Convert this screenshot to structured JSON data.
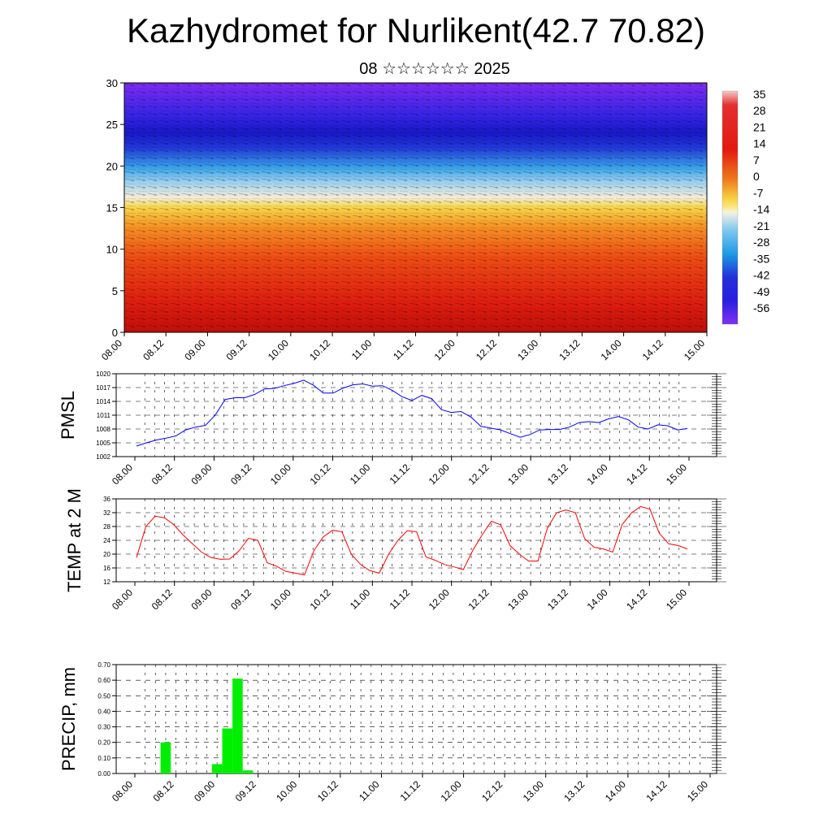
{
  "header": {
    "title": "Kazhydromet for Nurlikent(42.7 70.82)",
    "subtitle": "08 ☆☆☆☆☆☆ 2025"
  },
  "x_ticks": [
    "08.00",
    "08.12",
    "09.00",
    "09.12",
    "10.00",
    "10.12",
    "11.00",
    "11.12",
    "12.00",
    "12.12",
    "13.00",
    "13.12",
    "14.00",
    "14.12",
    "15.00"
  ],
  "chart_data": [
    {
      "type": "heatmap",
      "title": "",
      "ylim": [
        0,
        30
      ],
      "y_ticks": [
        "0",
        "5",
        "10",
        "15",
        "20",
        "25",
        "30"
      ],
      "colorbar_labels": [
        "35",
        "28",
        "21",
        "14",
        "7",
        "0",
        "-7",
        "-14",
        "-21",
        "-28",
        "-35",
        "-42",
        "-49",
        "-56"
      ],
      "colors": {
        "warm": "#d81a0c",
        "mid": "#f5c93a",
        "cool": "#8ec8f0",
        "cold": "#1a1ae0",
        "top": "#7b2cf0"
      },
      "description_layers": "temperature shading with wind vectors"
    },
    {
      "type": "line",
      "ylabel": "PMSL",
      "ylim": [
        1002,
        1020
      ],
      "y_ticks": [
        "1002",
        "1005",
        "1008",
        "1011",
        "1014",
        "1017",
        "1020"
      ],
      "color": "#0000ff",
      "values": [
        1004.3,
        1005.0,
        1005.6,
        1006.0,
        1006.5,
        1007.8,
        1008.4,
        1008.8,
        1011.0,
        1014.4,
        1014.8,
        1014.8,
        1015.5,
        1016.7,
        1016.8,
        1017.4,
        1017.9,
        1018.6,
        1017.5,
        1015.8,
        1015.8,
        1016.9,
        1017.6,
        1017.8,
        1017.3,
        1017.4,
        1016.4,
        1015.0,
        1014.2,
        1015.3,
        1014.6,
        1012.2,
        1011.6,
        1011.8,
        1010.6,
        1008.6,
        1008.2,
        1007.8,
        1007.0,
        1006.2,
        1006.8,
        1007.8,
        1007.9,
        1007.9,
        1008.4,
        1009.4,
        1009.6,
        1009.4,
        1010.2,
        1010.7,
        1010.0,
        1008.4,
        1008.0,
        1008.9,
        1008.7,
        1007.8,
        1008.1
      ]
    },
    {
      "type": "line",
      "ylabel": "TEMP at 2 M",
      "ylim": [
        12,
        36
      ],
      "y_ticks": [
        "12",
        "16",
        "20",
        "24",
        "28",
        "32",
        "36"
      ],
      "color": "#ff0000",
      "values": [
        19,
        28,
        31,
        30.5,
        28.5,
        25.5,
        23,
        20.5,
        19,
        18.5,
        18.6,
        21,
        24.6,
        24,
        17.5,
        16.5,
        15,
        14.5,
        14,
        21,
        25,
        26.9,
        26.5,
        20,
        17,
        15.2,
        14.5,
        20,
        24,
        26.8,
        26.5,
        19.2,
        18.2,
        17,
        16.3,
        15.5,
        21,
        25.5,
        29.5,
        28.5,
        22.5,
        20,
        18,
        18,
        27.5,
        32,
        32.8,
        32,
        24.5,
        22,
        21.5,
        20.6,
        28.5,
        31.9,
        33.8,
        33,
        26,
        23,
        22.5,
        21.5
      ]
    },
    {
      "type": "bar",
      "ylabel": "PRECIP, mm",
      "ylim": [
        0,
        0.7
      ],
      "y_ticks": [
        "0.00",
        "0.10",
        "0.20",
        "0.30",
        "0.40",
        "0.50",
        "0.60",
        "0.70"
      ],
      "color": "#00ee00",
      "bars": [
        {
          "x": "08.09",
          "value": 0.2
        },
        {
          "x": "09.00",
          "value": 0.06
        },
        {
          "x": "09.03",
          "value": 0.29
        },
        {
          "x": "09.06",
          "value": 0.61
        },
        {
          "x": "09.09",
          "value": 0.02
        }
      ]
    }
  ]
}
